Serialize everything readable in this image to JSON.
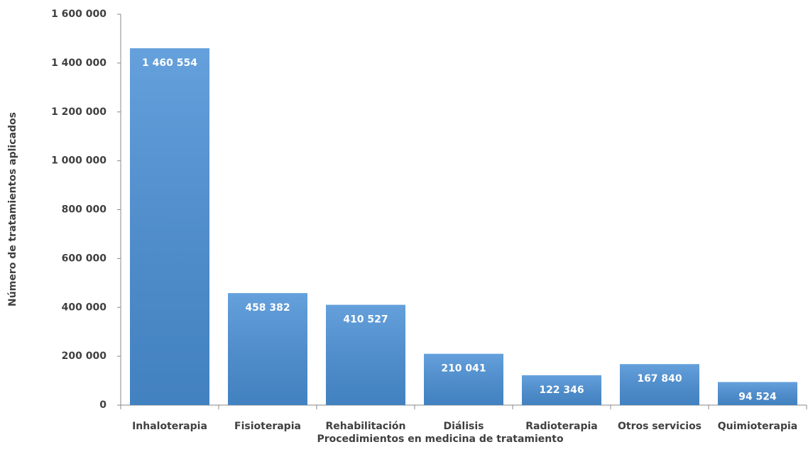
{
  "chart_data": {
    "type": "bar",
    "x_label": "Procedimientos en medicina de tratamiento",
    "y_label": "Número de tratamientos aplicados",
    "categories": [
      "Inhaloterapia",
      "Fisioterapia",
      "Rehabilitación",
      "Diálisis",
      "Radioterapia",
      "Otros servicios",
      "Quimioterapia"
    ],
    "values": [
      1460554,
      458382,
      410527,
      210041,
      122346,
      167840,
      94524
    ],
    "value_labels": [
      "1 460 554",
      "458 382",
      "410 527",
      "210 041",
      "122 346",
      "167 840",
      "94 524"
    ],
    "color": "#4a90d6",
    "ylim": [
      0,
      1600000
    ],
    "yticks": [
      0,
      {
        "value": 200000,
        "label": "200 000"
      },
      {
        "value": 400000,
        "label": "400 000"
      },
      {
        "value": 600000,
        "label": "600 000"
      },
      {
        "value": 800000,
        "label": "800 000"
      },
      {
        "value": 1000000,
        "label": "1 000 000"
      },
      {
        "value": 1200000,
        "label": "1 200 000"
      },
      {
        "value": 1400000,
        "label": "1 400 000"
      },
      {
        "value": 1600000,
        "label": "1 600 000"
      }
    ],
    "grid": false
  }
}
